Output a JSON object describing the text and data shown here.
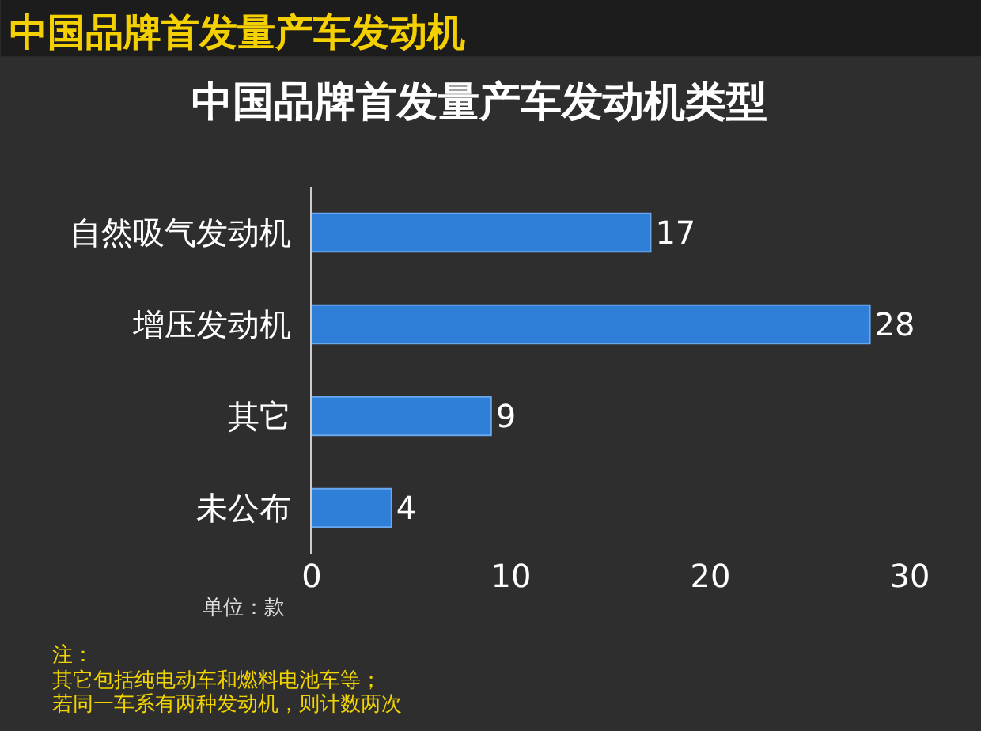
{
  "chart_data": {
    "type": "bar",
    "orientation": "horizontal",
    "title": "中国品牌首发量产车发动机",
    "subtitle": "中国品牌首发量产车发动机类型",
    "xlabel": "单位：款",
    "categories": [
      "自然吸气发动机",
      "增压发动机",
      "其它",
      "未公布"
    ],
    "values": [
      17,
      28,
      9,
      4
    ],
    "color": "#2f7fd8",
    "xlim": [
      0,
      30
    ],
    "xticks": [
      0,
      10,
      20,
      30
    ],
    "data_labels": true,
    "grid": false,
    "annotations": [
      "注：",
      "其它包括纯电动车和燃料电池车等；",
      "若同一车系有两种发动机，则计数两次"
    ]
  }
}
